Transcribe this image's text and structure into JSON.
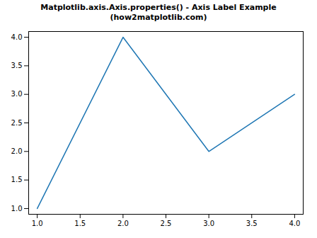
{
  "chart_data": {
    "type": "line",
    "title": "Matplotlib.axis.Axis.properties() - Axis Label Example (how2matplotlib.com)",
    "x": [
      1,
      2,
      3,
      4
    ],
    "values": [
      1,
      4,
      2,
      3
    ],
    "color": "#1f77b4",
    "xlim": [
      0.9,
      4.1
    ],
    "ylim": [
      0.9,
      4.1
    ],
    "xticks": [
      {
        "value": 1,
        "label": "1.0"
      },
      1.5,
      {
        "value": 2,
        "label": "2.0"
      },
      2.5,
      {
        "value": 3,
        "label": "3.0"
      },
      3.5,
      {
        "value": 4,
        "label": "4.0"
      }
    ],
    "yticks": [
      {
        "value": 1,
        "label": "1.0"
      },
      1.5,
      {
        "value": 2,
        "label": "2.0"
      },
      2.5,
      {
        "value": 3,
        "label": "3.0"
      },
      3.5,
      {
        "value": 4,
        "label": "4.0"
      }
    ],
    "grid": false
  }
}
